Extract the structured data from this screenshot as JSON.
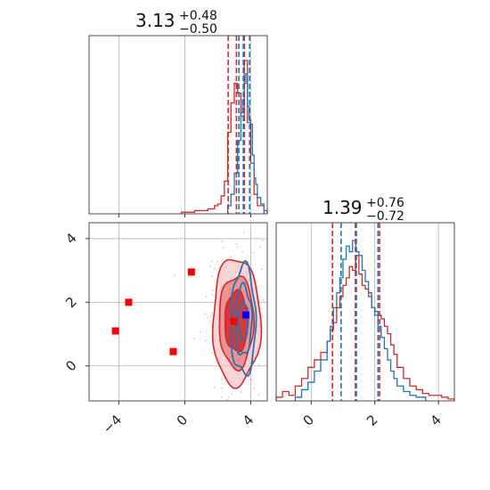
{
  "colors": {
    "red": "#d62728",
    "blue": "#1f77b4",
    "marker_red": "#ff0000",
    "marker_blue": "#0000ff",
    "fill_dark": "#d62728",
    "fill_mid": "#e8868a",
    "scatter": "#f7b6c0"
  },
  "chart_data": {
    "type": "corner",
    "grid": true,
    "parameters": [
      {
        "title_value": "3.13",
        "title_plus": "+0.48",
        "title_minus": "−0.50",
        "range": [
          -5.8,
          5.0
        ],
        "ticks": [
          -4,
          0,
          4
        ],
        "tick_labels": [
          "−4",
          "0",
          "4"
        ]
      },
      {
        "title_value": "1.39",
        "title_plus": "+0.76",
        "title_minus": "−0.72",
        "range": [
          -1.1,
          4.5
        ],
        "ticks": [
          0,
          2,
          4
        ],
        "tick_labels": [
          "0",
          "2",
          "4"
        ]
      }
    ],
    "marginal_1": {
      "red_quantiles": [
        2.63,
        3.13,
        3.61
      ],
      "blue_quantiles": [
        3.28,
        3.55,
        3.93
      ],
      "red_hist": {
        "edges": [
          -0.2,
          0.2,
          0.6,
          1.0,
          1.4,
          1.8,
          2.0,
          2.2,
          2.4,
          2.6,
          2.8,
          3.0,
          3.2,
          3.4,
          3.6,
          3.8,
          4.0,
          4.2,
          4.4,
          4.8,
          5.0
        ],
        "counts": [
          0.01,
          0.01,
          0.02,
          0.02,
          0.03,
          0.05,
          0.06,
          0.11,
          0.2,
          0.5,
          0.68,
          0.8,
          0.74,
          0.6,
          0.94,
          0.56,
          0.31,
          0.12,
          0.05,
          0.02
        ]
      },
      "blue_hist": {
        "edges": [
          2.6,
          2.8,
          3.0,
          3.2,
          3.4,
          3.5,
          3.6,
          3.7,
          3.8,
          3.9,
          4.0,
          4.1,
          4.2,
          4.3,
          4.4,
          4.6,
          4.8
        ],
        "counts": [
          0.05,
          0.12,
          0.25,
          0.45,
          0.62,
          0.7,
          0.8,
          0.86,
          0.66,
          0.58,
          0.55,
          0.36,
          0.22,
          0.18,
          0.1,
          0.06
        ]
      }
    },
    "marginal_2": {
      "red_quantiles": [
        0.67,
        1.39,
        2.15
      ],
      "blue_quantiles": [
        0.94,
        1.42,
        2.1
      ],
      "red_hist": {
        "edges": [
          -1.1,
          -0.9,
          -0.7,
          -0.5,
          -0.3,
          -0.1,
          0.1,
          0.3,
          0.5,
          0.6,
          0.7,
          0.8,
          0.9,
          1.0,
          1.1,
          1.2,
          1.3,
          1.4,
          1.5,
          1.6,
          1.7,
          1.8,
          1.9,
          2.0,
          2.1,
          2.2,
          2.3,
          2.4,
          2.5,
          2.6,
          2.7,
          2.9,
          3.1,
          3.3,
          3.5,
          3.7,
          3.9,
          4.1,
          4.3,
          4.5
        ],
        "counts": [
          0.02,
          0.05,
          0.03,
          0.08,
          0.12,
          0.18,
          0.22,
          0.26,
          0.32,
          0.38,
          0.42,
          0.5,
          0.56,
          0.62,
          0.66,
          0.72,
          0.7,
          0.78,
          0.68,
          0.62,
          0.6,
          0.58,
          0.5,
          0.48,
          0.46,
          0.44,
          0.4,
          0.36,
          0.3,
          0.25,
          0.18,
          0.12,
          0.08,
          0.06,
          0.04,
          0.03,
          0.03,
          0.02,
          0.01
        ]
      },
      "blue_hist": {
        "edges": [
          -0.5,
          -0.3,
          -0.1,
          0.1,
          0.3,
          0.5,
          0.6,
          0.7,
          0.8,
          0.9,
          1.0,
          1.1,
          1.2,
          1.3,
          1.4,
          1.5,
          1.6,
          1.7,
          1.8,
          1.9,
          2.0,
          2.1,
          2.2,
          2.3,
          2.4,
          2.5,
          2.6,
          2.7,
          2.9,
          3.1,
          3.3,
          3.6
        ],
        "counts": [
          0.02,
          0.06,
          0.1,
          0.16,
          0.22,
          0.32,
          0.4,
          0.5,
          0.58,
          0.66,
          0.76,
          0.83,
          0.8,
          0.86,
          0.8,
          0.78,
          0.7,
          0.64,
          0.56,
          0.5,
          0.46,
          0.4,
          0.34,
          0.28,
          0.22,
          0.16,
          0.12,
          0.08,
          0.05,
          0.03,
          0.02
        ]
      }
    },
    "joint": {
      "red_markers": [
        {
          "x": -4.2,
          "y": 1.1
        },
        {
          "x": -3.4,
          "y": 2.0
        },
        {
          "x": -0.7,
          "y": 0.45
        },
        {
          "x": 0.4,
          "y": 2.95
        },
        {
          "x": 3.0,
          "y": 1.4
        }
      ],
      "blue_markers": [
        {
          "x": 3.7,
          "y": 1.6
        }
      ],
      "red_contours": [
        {
          "cx": 3.13,
          "cy": 1.39,
          "rx": 1.45,
          "ry": 2.0
        },
        {
          "cx": 3.13,
          "cy": 1.39,
          "rx": 1.05,
          "ry": 1.45
        },
        {
          "cx": 3.13,
          "cy": 1.39,
          "rx": 0.7,
          "ry": 0.95
        }
      ],
      "blue_contours": [
        {
          "cx": 3.55,
          "cy": 1.42,
          "rx": 0.75,
          "ry": 1.7
        },
        {
          "cx": 3.55,
          "cy": 1.42,
          "rx": 0.5,
          "ry": 1.1
        },
        {
          "cx": 3.55,
          "cy": 1.42,
          "rx": 0.28,
          "ry": 0.6
        }
      ],
      "scatter_center": [
        3.1,
        1.4
      ],
      "scatter_spread": [
        1.1,
        1.15
      ],
      "scatter_count": 220
    }
  }
}
